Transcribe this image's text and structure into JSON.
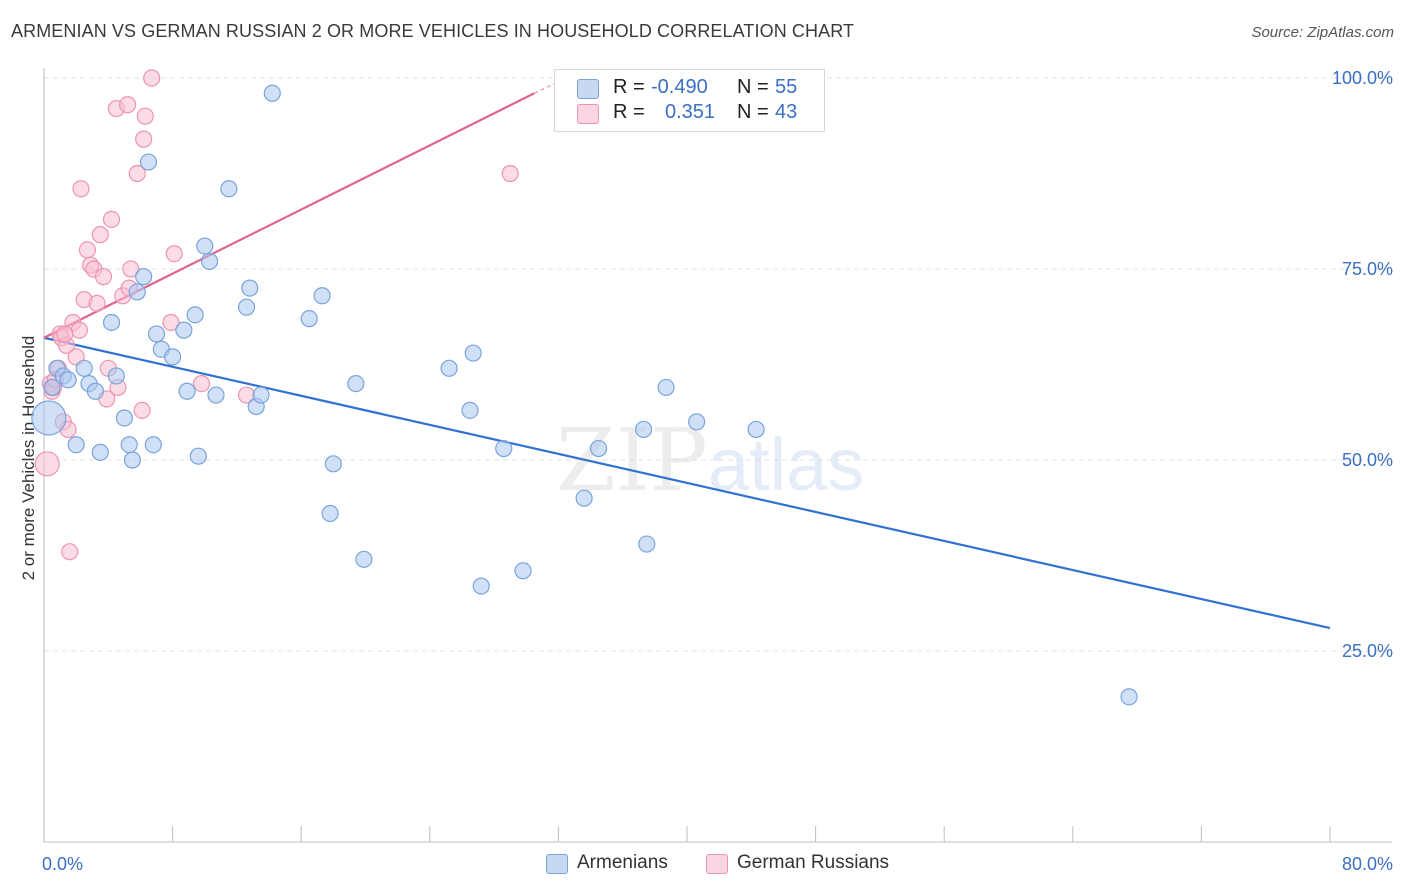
{
  "title": "ARMENIAN VS GERMAN RUSSIAN 2 OR MORE VEHICLES IN HOUSEHOLD CORRELATION CHART",
  "source": "Source: ZipAtlas.com",
  "watermark": {
    "zip": "ZIP",
    "atlas": "atlas"
  },
  "colors": {
    "blue_fill": "#a9c6ee",
    "blue_stroke": "#7aa3dc",
    "blue_line": "#2f72d2",
    "pink_fill": "#f7bfd0",
    "pink_stroke": "#ee94b0",
    "pink_line": "#e0648d",
    "grid": "#e3e3e3",
    "tick_label": "#3a6fc4"
  },
  "legend": {
    "rows": [
      {
        "r_label": "R =",
        "r_value": "-0.490",
        "n_label": "N =",
        "n_value": "55",
        "color": "#a9c6ee",
        "stroke": "#7aa3dc"
      },
      {
        "r_label": "R =",
        "r_value": "0.351",
        "n_label": "N =",
        "n_value": "43",
        "color": "#f7bfd0",
        "stroke": "#ee94b0"
      }
    ]
  },
  "bottom_legend": [
    {
      "label": "Armenians",
      "color": "#a9c6ee",
      "stroke": "#7aa3dc"
    },
    {
      "label": "German Russians",
      "color": "#f7bfd0",
      "stroke": "#ee94b0"
    }
  ],
  "chart_data": {
    "type": "scatter",
    "title": "ARMENIAN VS GERMAN RUSSIAN 2 OR MORE VEHICLES IN HOUSEHOLD CORRELATION CHART",
    "xlabel": "",
    "ylabel": "2 or more Vehicles in Household",
    "xlim": [
      0,
      80
    ],
    "ylim": [
      0,
      100
    ],
    "x_tick_labels": [
      "0.0%",
      "80.0%"
    ],
    "y_ticks": [
      25,
      50,
      75,
      100
    ],
    "y_tick_labels": [
      "25.0%",
      "50.0%",
      "75.0%",
      "100.0%"
    ],
    "grid": true,
    "legend_position": "top-center",
    "series": [
      {
        "name": "Armenians",
        "r": -0.49,
        "n": 55,
        "trend": {
          "x": [
            0,
            80
          ],
          "y": [
            66.0,
            28.0
          ]
        },
        "points": [
          [
            0.3,
            55.5
          ],
          [
            0.5,
            59.5
          ],
          [
            0.8,
            62.0
          ],
          [
            1.2,
            61.0
          ],
          [
            1.5,
            60.5
          ],
          [
            2.0,
            52.0
          ],
          [
            2.5,
            62.0
          ],
          [
            2.8,
            60.0
          ],
          [
            3.2,
            59.0
          ],
          [
            3.5,
            51.0
          ],
          [
            4.2,
            68.0
          ],
          [
            4.5,
            61.0
          ],
          [
            5.0,
            55.5
          ],
          [
            5.3,
            52.0
          ],
          [
            5.5,
            50.0
          ],
          [
            5.8,
            72.0
          ],
          [
            6.2,
            74.0
          ],
          [
            6.5,
            89.0
          ],
          [
            6.8,
            52.0
          ],
          [
            7.0,
            66.5
          ],
          [
            7.3,
            64.5
          ],
          [
            8.0,
            63.5
          ],
          [
            8.7,
            67.0
          ],
          [
            8.9,
            59.0
          ],
          [
            9.4,
            69.0
          ],
          [
            9.6,
            50.5
          ],
          [
            10.0,
            78.0
          ],
          [
            10.3,
            76.0
          ],
          [
            10.7,
            58.5
          ],
          [
            11.5,
            85.5
          ],
          [
            12.6,
            70.0
          ],
          [
            12.8,
            72.5
          ],
          [
            13.2,
            57.0
          ],
          [
            13.5,
            58.5
          ],
          [
            14.2,
            98.0
          ],
          [
            16.5,
            68.5
          ],
          [
            17.3,
            71.5
          ],
          [
            17.8,
            43.0
          ],
          [
            18.0,
            49.5
          ],
          [
            19.4,
            60.0
          ],
          [
            19.9,
            37.0
          ],
          [
            25.2,
            62.0
          ],
          [
            26.5,
            56.5
          ],
          [
            26.7,
            64.0
          ],
          [
            27.2,
            33.5
          ],
          [
            28.6,
            51.5
          ],
          [
            29.8,
            35.5
          ],
          [
            33.6,
            45.0
          ],
          [
            34.5,
            51.5
          ],
          [
            37.3,
            54.0
          ],
          [
            37.5,
            39.0
          ],
          [
            38.7,
            59.5
          ],
          [
            40.6,
            55.0
          ],
          [
            44.3,
            54.0
          ],
          [
            67.5,
            19.0
          ]
        ]
      },
      {
        "name": "German Russians",
        "r": 0.351,
        "n": 43,
        "trend": {
          "x": [
            0,
            30.5
          ],
          "y": [
            66.0,
            98.0
          ]
        },
        "trend_dashed_extension": {
          "x": [
            30.5,
            32.0
          ],
          "y": [
            98.0,
            99.5
          ]
        },
        "points": [
          [
            0.2,
            49.5
          ],
          [
            0.4,
            60.0
          ],
          [
            0.5,
            59.0
          ],
          [
            0.6,
            59.5
          ],
          [
            0.9,
            62.0
          ],
          [
            1.0,
            66.5
          ],
          [
            1.1,
            66.0
          ],
          [
            1.2,
            55.0
          ],
          [
            1.4,
            65.0
          ],
          [
            1.5,
            54.0
          ],
          [
            1.6,
            38.0
          ],
          [
            1.8,
            68.0
          ],
          [
            2.0,
            63.5
          ],
          [
            2.2,
            67.0
          ],
          [
            2.3,
            85.5
          ],
          [
            2.5,
            71.0
          ],
          [
            2.7,
            77.5
          ],
          [
            2.9,
            75.5
          ],
          [
            3.1,
            75.0
          ],
          [
            3.3,
            70.5
          ],
          [
            3.5,
            79.5
          ],
          [
            3.7,
            74.0
          ],
          [
            3.9,
            58.0
          ],
          [
            4.0,
            62.0
          ],
          [
            4.2,
            81.5
          ],
          [
            4.5,
            96.0
          ],
          [
            4.6,
            59.5
          ],
          [
            4.9,
            71.5
          ],
          [
            5.2,
            96.5
          ],
          [
            5.3,
            72.5
          ],
          [
            5.4,
            75.0
          ],
          [
            5.8,
            87.5
          ],
          [
            6.1,
            56.5
          ],
          [
            6.2,
            92.0
          ],
          [
            6.3,
            95.0
          ],
          [
            6.7,
            100.0
          ],
          [
            7.9,
            68.0
          ],
          [
            8.1,
            77.0
          ],
          [
            9.8,
            60.0
          ],
          [
            12.6,
            58.5
          ],
          [
            29.0,
            87.5
          ],
          [
            0.7,
            60.5
          ],
          [
            1.3,
            66.5
          ]
        ]
      }
    ]
  }
}
